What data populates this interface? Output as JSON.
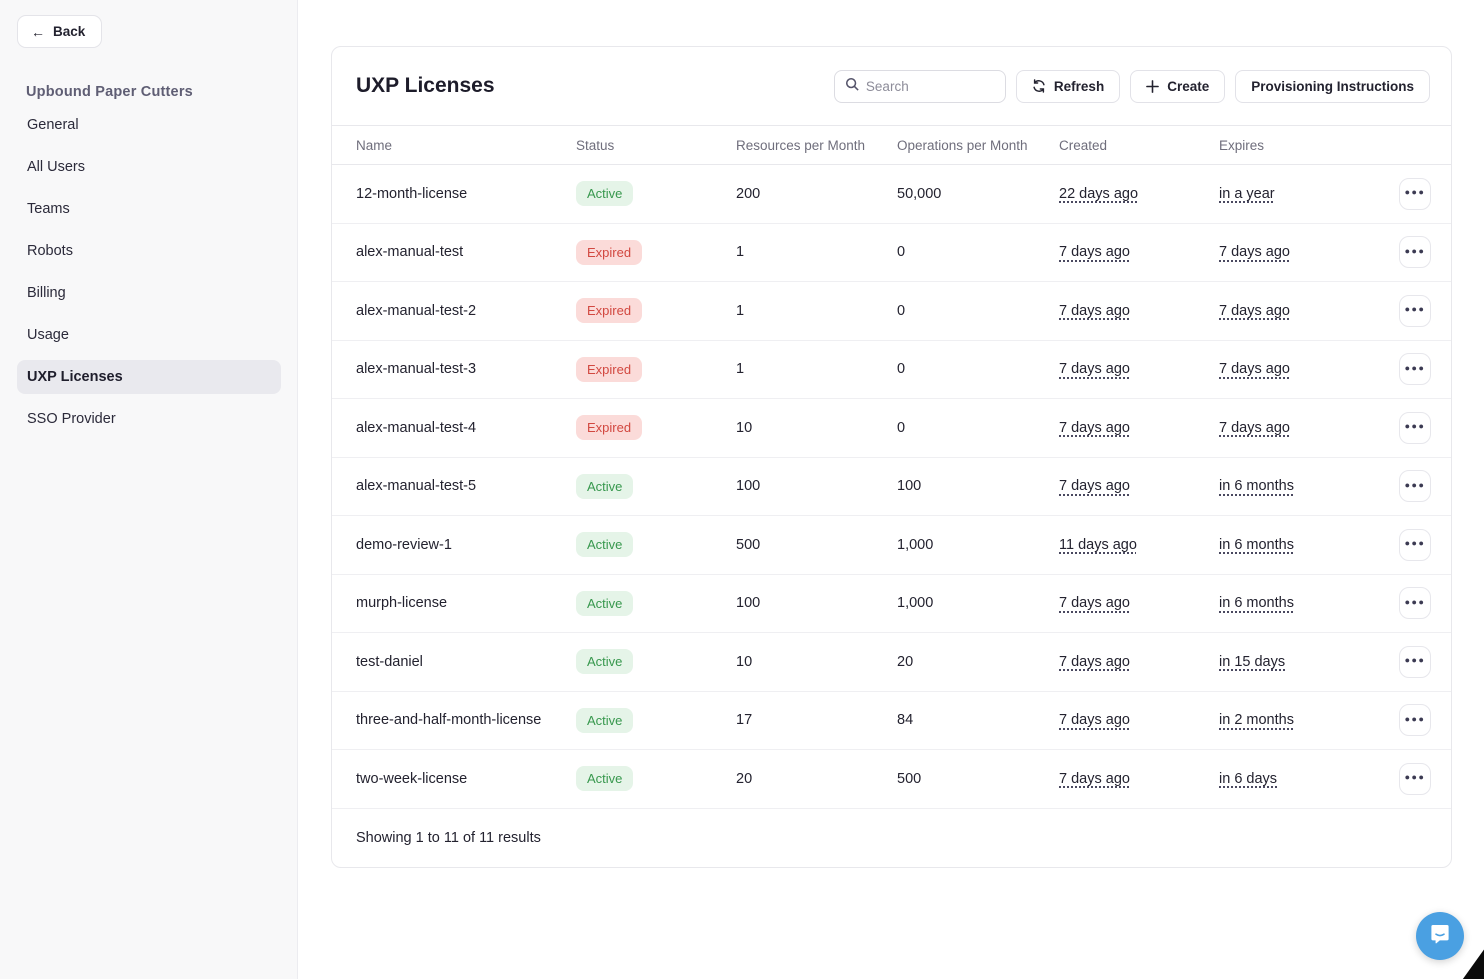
{
  "sidebar": {
    "back_label": "Back",
    "org_name": "Upbound Paper Cutters",
    "items": [
      {
        "label": "General",
        "active": false
      },
      {
        "label": "All Users",
        "active": false
      },
      {
        "label": "Teams",
        "active": false
      },
      {
        "label": "Robots",
        "active": false
      },
      {
        "label": "Billing",
        "active": false
      },
      {
        "label": "Usage",
        "active": false
      },
      {
        "label": "UXP Licenses",
        "active": true
      },
      {
        "label": "SSO Provider",
        "active": false
      }
    ]
  },
  "header": {
    "title": "UXP Licenses",
    "search_placeholder": "Search",
    "refresh_label": "Refresh",
    "create_label": "Create",
    "provisioning_label": "Provisioning Instructions"
  },
  "table": {
    "columns": [
      "Name",
      "Status",
      "Resources per Month",
      "Operations per Month",
      "Created",
      "Expires"
    ],
    "rows": [
      {
        "name": "12-month-license",
        "status": "Active",
        "resources": "200",
        "operations": "50,000",
        "created": "22 days ago",
        "expires": "in a year"
      },
      {
        "name": "alex-manual-test",
        "status": "Expired",
        "resources": "1",
        "operations": "0",
        "created": "7 days ago",
        "expires": "7 days ago"
      },
      {
        "name": "alex-manual-test-2",
        "status": "Expired",
        "resources": "1",
        "operations": "0",
        "created": "7 days ago",
        "expires": "7 days ago"
      },
      {
        "name": "alex-manual-test-3",
        "status": "Expired",
        "resources": "1",
        "operations": "0",
        "created": "7 days ago",
        "expires": "7 days ago"
      },
      {
        "name": "alex-manual-test-4",
        "status": "Expired",
        "resources": "10",
        "operations": "0",
        "created": "7 days ago",
        "expires": "7 days ago"
      },
      {
        "name": "alex-manual-test-5",
        "status": "Active",
        "resources": "100",
        "operations": "100",
        "created": "7 days ago",
        "expires": "in 6 months"
      },
      {
        "name": "demo-review-1",
        "status": "Active",
        "resources": "500",
        "operations": "1,000",
        "created": "11 days ago",
        "expires": "in 6 months"
      },
      {
        "name": "murph-license",
        "status": "Active",
        "resources": "100",
        "operations": "1,000",
        "created": "7 days ago",
        "expires": "in 6 months"
      },
      {
        "name": "test-daniel",
        "status": "Active",
        "resources": "10",
        "operations": "20",
        "created": "7 days ago",
        "expires": "in 15 days"
      },
      {
        "name": "three-and-half-month-license",
        "status": "Active",
        "resources": "17",
        "operations": "84",
        "created": "7 days ago",
        "expires": "in 2 months"
      },
      {
        "name": "two-week-license",
        "status": "Active",
        "resources": "20",
        "operations": "500",
        "created": "7 days ago",
        "expires": "in 6 days"
      }
    ],
    "footer": "Showing 1 to 11 of 11 results"
  },
  "colors": {
    "accent_blue": "#4aa0e2",
    "badge_active_bg": "#e5f4e8",
    "badge_active_text": "#38984e",
    "badge_expired_bg": "#fbdbd9",
    "badge_expired_text": "#d24840",
    "sidebar_bg": "#f8f8f9",
    "selected_item_bg": "#e9e9ee"
  },
  "icons": {
    "back": "back-arrow-icon",
    "search": "search-icon",
    "refresh": "refresh-icon",
    "create": "plus-icon",
    "row_menu": "ellipsis-icon",
    "chat": "chat-bubble-icon"
  }
}
